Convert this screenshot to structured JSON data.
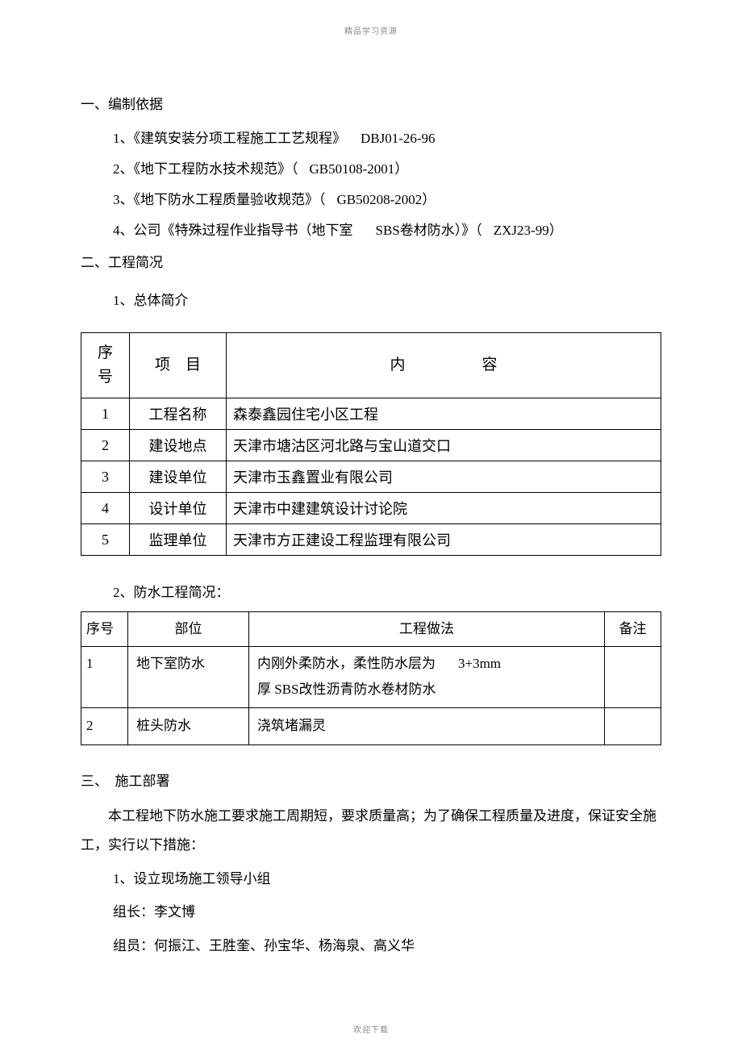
{
  "header_note": "精品学习资源",
  "footer_note": "欢迎下载",
  "sec1": {
    "title": "一、编制依据",
    "items": [
      {
        "n": "1、",
        "pre": "《建筑安装分项工程施工工艺规程》",
        "code": "DBJ01-26-96",
        "wrap": ""
      },
      {
        "n": "2、",
        "pre": "《地下工程防水技术规范》（",
        "code": "GB50108-2001",
        "wrap": "）"
      },
      {
        "n": "3、",
        "pre": "《地下防水工程质量验收规范》（",
        "code": "GB50208-2002",
        "wrap": "）"
      },
      {
        "n": "4、",
        "pre": "公司《特殊过程作业指导书（地下室",
        "mid": "SBS卷材防水）》（",
        "code": "ZXJ23-99",
        "wrap": "）"
      }
    ]
  },
  "sec2": {
    "title": "二、工程简况",
    "sub1": "1、总体简介",
    "sub2": "2、防水工程简况："
  },
  "table1": {
    "headers": {
      "seq": "序号",
      "item": "项　目",
      "content": "内　　　　　容"
    },
    "rows": [
      {
        "seq": "1",
        "item": "工程名称",
        "content": "森泰鑫园住宅小区工程"
      },
      {
        "seq": "2",
        "item": "建设地点",
        "content": "天津市塘沽区河北路与宝山道交口"
      },
      {
        "seq": "3",
        "item": "建设单位",
        "content": "天津市玉鑫置业有限公司"
      },
      {
        "seq": "4",
        "item": "设计单位",
        "content": "天津市中建建筑设计讨论院"
      },
      {
        "seq": "5",
        "item": "监理单位",
        "content": "天津市方正建设工程监理有限公司"
      }
    ]
  },
  "table2": {
    "headers": {
      "seq": "序号",
      "part": "部位",
      "method": "工程做法",
      "note": "备注"
    },
    "rows": [
      {
        "seq": "1",
        "part": "地下室防水",
        "method_a": "内刚外柔防水，柔性防水层为",
        "method_b": "3+3mm",
        "method_c": "厚 SBS改性沥青防水卷材防水",
        "note": ""
      },
      {
        "seq": "2",
        "part": "桩头防水",
        "method": "浇筑堵漏灵",
        "note": ""
      }
    ]
  },
  "sec3": {
    "title": "三、　施工部署",
    "para1": "本工程地下防水施工要求施工周期短，要求质量高；为了确保工程质量及进度，保证安全施工，实行以下措施：",
    "l1": "1、设立现场施工领导小组",
    "l2": "组长：李文博",
    "l3": "组员：何振江、王胜奎、孙宝华、杨海泉、高义华"
  }
}
